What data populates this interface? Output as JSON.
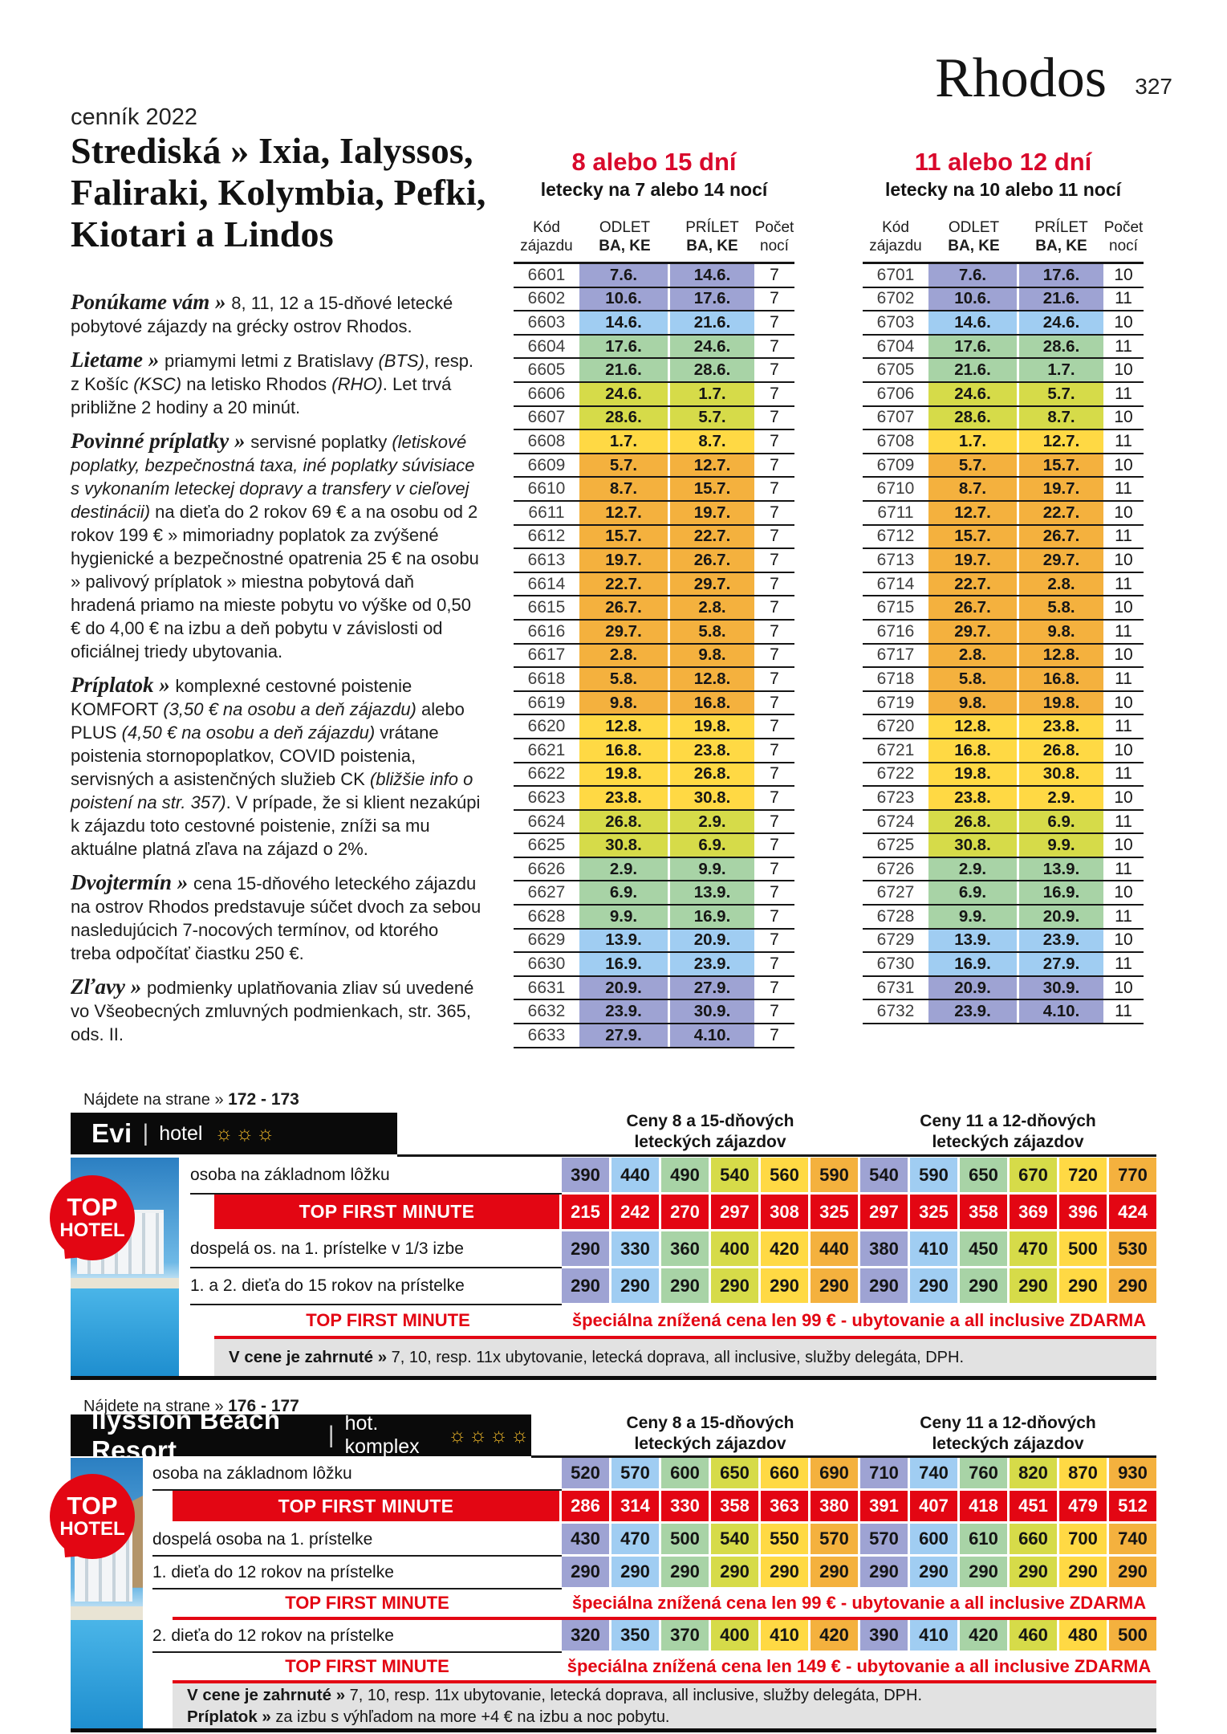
{
  "header": {
    "catalog_label": "cenník 2022",
    "destination": "Rhodos",
    "page_number": "327"
  },
  "intro": {
    "title": "Strediská » Ixia, Ialyssos, Faliraki, Kolymbia, Pefki, Kiotari a Lindos",
    "paragraphs": [
      {
        "lead": "Ponúkame vám »",
        "segments": [
          {
            "text": "8, 11, 12 a 15-dňové letecké pobytové zájazdy na grécky ostrov Rhodos."
          }
        ]
      },
      {
        "lead": "Lietame »",
        "segments": [
          {
            "text": "priamymi letmi z Bratislavy "
          },
          {
            "text": "(BTS)",
            "italic": true
          },
          {
            "text": ", resp. z Košíc "
          },
          {
            "text": "(KSC)",
            "italic": true
          },
          {
            "text": " na letisko Rhodos "
          },
          {
            "text": "(RHO)",
            "italic": true
          },
          {
            "text": ". Let trvá približne 2 hodiny a 20 minút."
          }
        ]
      },
      {
        "lead": "Povinné príplatky »",
        "segments": [
          {
            "text": "servisné poplatky "
          },
          {
            "text": "(letiskové poplatky, bezpečnostná taxa, iné poplatky súvisiace s vykonaním leteckej dopravy a transfery v cieľovej destinácii)",
            "italic": true
          },
          {
            "text": " na dieťa do 2 rokov 69 € a na osobu od 2 rokov 199 € » mimoriadny poplatok za zvýšené hygienické a bezpečnostné opatrenia 25 € na osobu » palivový príplatok » miestna pobytová daň hradená priamo na mieste pobytu vo výške od 0,50 € do 4,00 € na izbu a deň pobytu v závislosti od oficiálnej triedy ubytovania."
          }
        ]
      },
      {
        "lead": "Príplatok »",
        "segments": [
          {
            "text": "komplexné cestovné poistenie KOMFORT "
          },
          {
            "text": "(3,50 € na osobu a deň zájazdu)",
            "italic": true
          },
          {
            "text": " alebo PLUS "
          },
          {
            "text": "(4,50 € na osobu a deň zájazdu)",
            "italic": true
          },
          {
            "text": " vrátane poistenia stornopoplatkov, COVID poistenia, servisných a asistenčných služieb CK "
          },
          {
            "text": "(bližšie info o poistení na str. 357)",
            "italic": true
          },
          {
            "text": ". V prípade, že si klient nezakúpi k zájazdu toto cestovné poistenie, zníži sa mu aktuálne platná zľava na zájazd o 2%."
          }
        ]
      },
      {
        "lead": "Dvojtermín »",
        "segments": [
          {
            "text": "cena 15-dňového leteckého zájazdu na ostrov Rhodos predstavuje súčet dvoch za sebou nasledujúcich 7-nocových termínov, od ktorého treba odpočítať čiastku 250 €."
          }
        ]
      },
      {
        "lead": "Zľavy »",
        "segments": [
          {
            "text": "podmienky uplatňovania zliav sú uvedené vo Všeobecných zmluvných podmienkach, str. 365, ods. II."
          }
        ]
      }
    ]
  },
  "colors": {
    "accent_red": "#d9092c",
    "band_red": "#e30613",
    "banner_black": "#0a0a0a",
    "included_gray": "#e2e2e2",
    "line_black": "#161616",
    "sun_gold": "#e8b227",
    "seasons": {
      "lavender": "#9ea3d3",
      "blue": "#a0cdf2",
      "green": "#a8d3a6",
      "yellowgreen": "#d6db49",
      "yellow": "#ffd944",
      "orange": "#f4b13e"
    }
  },
  "flight_columns": {
    "code": [
      "Kód",
      "zájazdu"
    ],
    "dep": "ODLET",
    "arr": "PRÍLET",
    "airports": "BA, KE",
    "nights": [
      "Počet",
      "nocí"
    ]
  },
  "flight_tables": [
    {
      "title": "8 alebo 15 dní",
      "subtitle": "letecky na 7 alebo 14 nocí",
      "rows": [
        [
          "6601",
          "7.6.",
          "14.6.",
          "7",
          "lavender"
        ],
        [
          "6602",
          "10.6.",
          "17.6.",
          "7",
          "lavender"
        ],
        [
          "6603",
          "14.6.",
          "21.6.",
          "7",
          "blue"
        ],
        [
          "6604",
          "17.6.",
          "24.6.",
          "7",
          "green"
        ],
        [
          "6605",
          "21.6.",
          "28.6.",
          "7",
          "green"
        ],
        [
          "6606",
          "24.6.",
          "1.7.",
          "7",
          "yellowgreen"
        ],
        [
          "6607",
          "28.6.",
          "5.7.",
          "7",
          "yellowgreen"
        ],
        [
          "6608",
          "1.7.",
          "8.7.",
          "7",
          "yellow"
        ],
        [
          "6609",
          "5.7.",
          "12.7.",
          "7",
          "orange"
        ],
        [
          "6610",
          "8.7.",
          "15.7.",
          "7",
          "orange"
        ],
        [
          "6611",
          "12.7.",
          "19.7.",
          "7",
          "orange"
        ],
        [
          "6612",
          "15.7.",
          "22.7.",
          "7",
          "orange"
        ],
        [
          "6613",
          "19.7.",
          "26.7.",
          "7",
          "orange"
        ],
        [
          "6614",
          "22.7.",
          "29.7.",
          "7",
          "orange"
        ],
        [
          "6615",
          "26.7.",
          "2.8.",
          "7",
          "orange"
        ],
        [
          "6616",
          "29.7.",
          "5.8.",
          "7",
          "orange"
        ],
        [
          "6617",
          "2.8.",
          "9.8.",
          "7",
          "orange"
        ],
        [
          "6618",
          "5.8.",
          "12.8.",
          "7",
          "orange"
        ],
        [
          "6619",
          "9.8.",
          "16.8.",
          "7",
          "orange"
        ],
        [
          "6620",
          "12.8.",
          "19.8.",
          "7",
          "yellow"
        ],
        [
          "6621",
          "16.8.",
          "23.8.",
          "7",
          "yellow"
        ],
        [
          "6622",
          "19.8.",
          "26.8.",
          "7",
          "yellow"
        ],
        [
          "6623",
          "23.8.",
          "30.8.",
          "7",
          "yellow"
        ],
        [
          "6624",
          "26.8.",
          "2.9.",
          "7",
          "yellowgreen"
        ],
        [
          "6625",
          "30.8.",
          "6.9.",
          "7",
          "yellowgreen"
        ],
        [
          "6626",
          "2.9.",
          "9.9.",
          "7",
          "green"
        ],
        [
          "6627",
          "6.9.",
          "13.9.",
          "7",
          "green"
        ],
        [
          "6628",
          "9.9.",
          "16.9.",
          "7",
          "green"
        ],
        [
          "6629",
          "13.9.",
          "20.9.",
          "7",
          "blue"
        ],
        [
          "6630",
          "16.9.",
          "23.9.",
          "7",
          "blue"
        ],
        [
          "6631",
          "20.9.",
          "27.9.",
          "7",
          "lavender"
        ],
        [
          "6632",
          "23.9.",
          "30.9.",
          "7",
          "lavender"
        ],
        [
          "6633",
          "27.9.",
          "4.10.",
          "7",
          "lavender"
        ]
      ]
    },
    {
      "title": "11 alebo 12 dní",
      "subtitle": "letecky na 10 alebo 11 nocí",
      "rows": [
        [
          "6701",
          "7.6.",
          "17.6.",
          "10",
          "lavender"
        ],
        [
          "6702",
          "10.6.",
          "21.6.",
          "11",
          "lavender"
        ],
        [
          "6703",
          "14.6.",
          "24.6.",
          "10",
          "blue"
        ],
        [
          "6704",
          "17.6.",
          "28.6.",
          "11",
          "green"
        ],
        [
          "6705",
          "21.6.",
          "1.7.",
          "10",
          "green"
        ],
        [
          "6706",
          "24.6.",
          "5.7.",
          "11",
          "yellowgreen"
        ],
        [
          "6707",
          "28.6.",
          "8.7.",
          "10",
          "yellowgreen"
        ],
        [
          "6708",
          "1.7.",
          "12.7.",
          "11",
          "yellow"
        ],
        [
          "6709",
          "5.7.",
          "15.7.",
          "10",
          "orange"
        ],
        [
          "6710",
          "8.7.",
          "19.7.",
          "11",
          "orange"
        ],
        [
          "6711",
          "12.7.",
          "22.7.",
          "10",
          "orange"
        ],
        [
          "6712",
          "15.7.",
          "26.7.",
          "11",
          "orange"
        ],
        [
          "6713",
          "19.7.",
          "29.7.",
          "10",
          "orange"
        ],
        [
          "6714",
          "22.7.",
          "2.8.",
          "11",
          "orange"
        ],
        [
          "6715",
          "26.7.",
          "5.8.",
          "10",
          "orange"
        ],
        [
          "6716",
          "29.7.",
          "9.8.",
          "11",
          "orange"
        ],
        [
          "6717",
          "2.8.",
          "12.8.",
          "10",
          "orange"
        ],
        [
          "6718",
          "5.8.",
          "16.8.",
          "11",
          "orange"
        ],
        [
          "6719",
          "9.8.",
          "19.8.",
          "10",
          "orange"
        ],
        [
          "6720",
          "12.8.",
          "23.8.",
          "11",
          "yellow"
        ],
        [
          "6721",
          "16.8.",
          "26.8.",
          "10",
          "yellow"
        ],
        [
          "6722",
          "19.8.",
          "30.8.",
          "11",
          "yellow"
        ],
        [
          "6723",
          "23.8.",
          "2.9.",
          "10",
          "yellow"
        ],
        [
          "6724",
          "26.8.",
          "6.9.",
          "11",
          "yellowgreen"
        ],
        [
          "6725",
          "30.8.",
          "9.9.",
          "10",
          "yellowgreen"
        ],
        [
          "6726",
          "2.9.",
          "13.9.",
          "11",
          "green"
        ],
        [
          "6727",
          "6.9.",
          "16.9.",
          "10",
          "green"
        ],
        [
          "6728",
          "9.9.",
          "20.9.",
          "11",
          "green"
        ],
        [
          "6729",
          "13.9.",
          "23.9.",
          "10",
          "blue"
        ],
        [
          "6730",
          "16.9.",
          "27.9.",
          "11",
          "blue"
        ],
        [
          "6731",
          "20.9.",
          "30.9.",
          "10",
          "lavender"
        ],
        [
          "6732",
          "23.9.",
          "4.10.",
          "11",
          "lavender"
        ]
      ]
    }
  ],
  "price_seasons": [
    "lavender",
    "blue",
    "green",
    "yellowgreen",
    "yellow",
    "orange",
    "lavender",
    "blue",
    "green",
    "yellowgreen",
    "yellow",
    "orange"
  ],
  "top_hotel_badge": [
    "TOP",
    "HOTEL"
  ],
  "hotels": [
    {
      "page_ref_label": "Nájdete na strane »",
      "page_ref": "172 - 173",
      "name": "Evi",
      "category": "hotel",
      "suns": 3,
      "group_headers": [
        [
          "Ceny 8 a 15-dňových",
          "leteckých zájazdov"
        ],
        [
          "Ceny 11 a 12-dňových",
          "leteckých zájazdov"
        ]
      ],
      "rows": [
        {
          "type": "price",
          "label": "osoba na základnom lôžku",
          "values": [
            "390",
            "440",
            "490",
            "540",
            "560",
            "590",
            "540",
            "590",
            "650",
            "670",
            "720",
            "770"
          ]
        },
        {
          "type": "tfm",
          "label": "TOP FIRST MINUTE",
          "values": [
            "215",
            "242",
            "270",
            "297",
            "308",
            "325",
            "297",
            "325",
            "358",
            "369",
            "396",
            "424"
          ]
        },
        {
          "type": "price",
          "label": "dospelá os. na 1. prístelke v 1/3 izbe",
          "values": [
            "290",
            "330",
            "360",
            "400",
            "420",
            "440",
            "380",
            "410",
            "450",
            "470",
            "500",
            "530"
          ]
        },
        {
          "type": "price",
          "label": "1. a 2. dieťa do 15 rokov na prístelke",
          "values": [
            "290",
            "290",
            "290",
            "290",
            "290",
            "290",
            "290",
            "290",
            "290",
            "290",
            "290",
            "290"
          ]
        },
        {
          "type": "note",
          "label": "TOP FIRST MINUTE",
          "note": "špeciálna znížená cena len 99 € - ubytovanie a all inclusive ZDARMA"
        },
        {
          "type": "included",
          "lines": [
            {
              "bold": "V cene je zahrnuté »",
              "text": " 7, 10, resp. 11x ubytovanie, letecká doprava, all inclusive, služby delegáta, DPH."
            }
          ]
        }
      ]
    },
    {
      "page_ref_label": "Nájdete na strane »",
      "page_ref": "176 - 177",
      "name": "Ilyssion Beach Resort",
      "category": "hot. komplex",
      "suns": 4,
      "group_headers": [
        [
          "Ceny 8 a 15-dňových",
          "leteckých zájazdov"
        ],
        [
          "Ceny 11 a 12-dňových",
          "leteckých zájazdov"
        ]
      ],
      "rows": [
        {
          "type": "price",
          "label": "osoba na základnom lôžku",
          "values": [
            "520",
            "570",
            "600",
            "650",
            "660",
            "690",
            "710",
            "740",
            "760",
            "820",
            "870",
            "930"
          ]
        },
        {
          "type": "tfm",
          "label": "TOP FIRST MINUTE",
          "values": [
            "286",
            "314",
            "330",
            "358",
            "363",
            "380",
            "391",
            "407",
            "418",
            "451",
            "479",
            "512"
          ]
        },
        {
          "type": "price",
          "label": "dospelá osoba na 1. prístelke",
          "values": [
            "430",
            "470",
            "500",
            "540",
            "550",
            "570",
            "570",
            "600",
            "610",
            "660",
            "700",
            "740"
          ]
        },
        {
          "type": "price",
          "label": "1. dieťa do 12 rokov na prístelke",
          "values": [
            "290",
            "290",
            "290",
            "290",
            "290",
            "290",
            "290",
            "290",
            "290",
            "290",
            "290",
            "290"
          ]
        },
        {
          "type": "note",
          "label": "TOP FIRST MINUTE",
          "note": "špeciálna znížená cena len 99 € - ubytovanie a all inclusive ZDARMA"
        },
        {
          "type": "price",
          "label": "2. dieťa do 12 rokov na prístelke",
          "values": [
            "320",
            "350",
            "370",
            "400",
            "410",
            "420",
            "390",
            "410",
            "420",
            "460",
            "480",
            "500"
          ]
        },
        {
          "type": "note",
          "label": "TOP FIRST MINUTE",
          "note": "špeciálna znížená cena len 149 € - ubytovanie a all inclusive ZDARMA"
        },
        {
          "type": "included",
          "lines": [
            {
              "bold": "V cene je zahrnuté »",
              "text": " 7, 10, resp. 11x ubytovanie, letecká doprava, all inclusive, služby delegáta, DPH."
            },
            {
              "bold": "Príplatok »",
              "text": " za izbu s výhľadom na more +4 € na izbu a noc pobytu."
            }
          ]
        }
      ]
    }
  ],
  "sun_char": "☼"
}
